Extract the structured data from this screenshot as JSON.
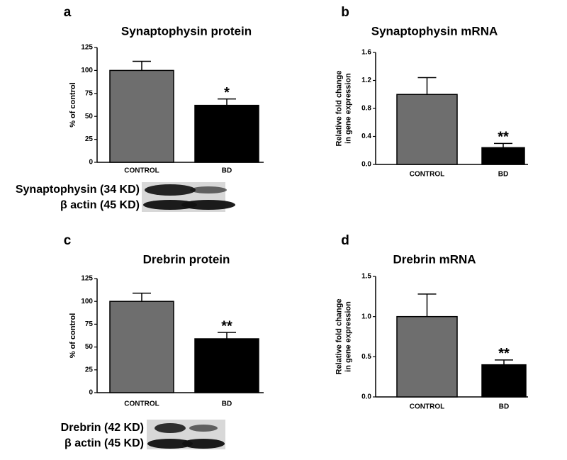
{
  "chart_data": [
    {
      "type": "bar",
      "panel": "a",
      "title": "Synaptophysin protein",
      "ylabel": [
        "% of control"
      ],
      "categories": [
        "CONTROL",
        "BD"
      ],
      "values": [
        100,
        62
      ],
      "errors": [
        10,
        7
      ],
      "colors": [
        "#6e6e6e",
        "#000000"
      ],
      "ylim": [
        0,
        125
      ],
      "yticks": [
        0,
        25,
        50,
        75,
        100,
        125
      ],
      "annotation": "*",
      "blot_labels": [
        "Synaptophysin (34 KD)",
        "β actin (45 KD)"
      ]
    },
    {
      "type": "bar",
      "panel": "b",
      "title": "Synaptophysin mRNA",
      "ylabel": [
        "Relative fold change",
        "in gene expression"
      ],
      "categories": [
        "CONTROL",
        "BD"
      ],
      "values": [
        1.0,
        0.24
      ],
      "errors": [
        0.24,
        0.06
      ],
      "colors": [
        "#6e6e6e",
        "#000000"
      ],
      "ylim": [
        0,
        1.6
      ],
      "yticks": [
        {
          "value": 0,
          "label": "0.0"
        },
        0.4,
        0.8,
        1.2,
        1.6
      ],
      "annotation": "**"
    },
    {
      "type": "bar",
      "panel": "c",
      "title": "Drebrin protein",
      "ylabel": [
        "% of control"
      ],
      "categories": [
        "CONTROL",
        "BD"
      ],
      "values": [
        100,
        59
      ],
      "errors": [
        9,
        7
      ],
      "colors": [
        "#6e6e6e",
        "#000000"
      ],
      "ylim": [
        0,
        125
      ],
      "yticks": [
        0,
        25,
        50,
        75,
        100,
        125
      ],
      "annotation": "**",
      "blot_labels": [
        "Drebrin (42 KD)",
        "β actin (45 KD)"
      ]
    },
    {
      "type": "bar",
      "panel": "d",
      "title": "Drebrin mRNA",
      "ylabel": [
        "Relative fold change",
        "in gene expression"
      ],
      "categories": [
        "CONTROL",
        "BD"
      ],
      "values": [
        1.0,
        0.4
      ],
      "errors": [
        0.28,
        0.06
      ],
      "colors": [
        "#6e6e6e",
        "#000000"
      ],
      "ylim": [
        0,
        1.5
      ],
      "yticks": [
        {
          "value": 0,
          "label": "0.0"
        },
        0.5,
        {
          "value": 1,
          "label": "1.0"
        },
        1.5
      ],
      "annotation": "**"
    }
  ]
}
